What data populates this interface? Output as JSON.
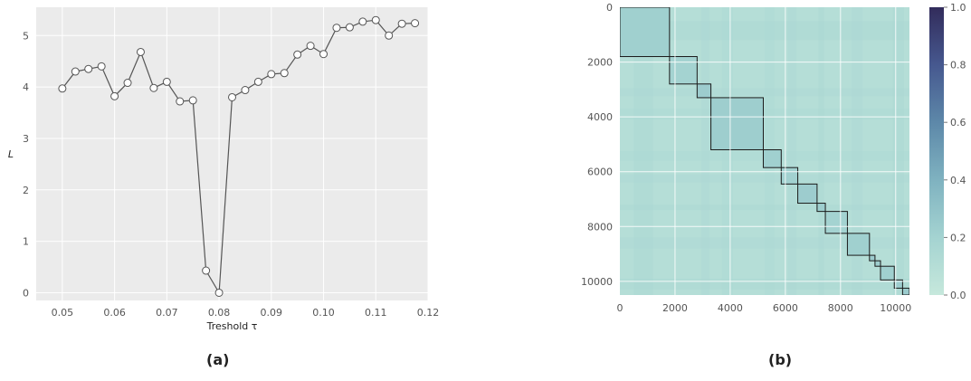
{
  "chart_data": [
    {
      "type": "line",
      "panel": "a",
      "xlabel": "Treshold τ",
      "ylabel": "L",
      "xlim": [
        0.045,
        0.12
      ],
      "ylim": [
        -0.15,
        5.55
      ],
      "xticks": [
        "0.05",
        "0.06",
        "0.07",
        "0.08",
        "0.09",
        "0.10",
        "0.11",
        "0.12"
      ],
      "yticks": [
        "0",
        "1",
        "2",
        "3",
        "4",
        "5"
      ],
      "grid": true,
      "series": [
        {
          "x": [
            0.05,
            0.0525,
            0.055,
            0.0575,
            0.06,
            0.0625,
            0.065,
            0.0675,
            0.07,
            0.0725,
            0.075,
            0.0775,
            0.08,
            0.0825,
            0.085,
            0.0875,
            0.09,
            0.0925,
            0.095,
            0.0975,
            0.1,
            0.1025,
            0.105,
            0.1075,
            0.11,
            0.1125,
            0.115,
            0.1175
          ],
          "values": [
            3.97,
            4.3,
            4.35,
            4.4,
            3.82,
            4.08,
            4.68,
            3.98,
            4.1,
            3.72,
            3.74,
            0.43,
            0.0,
            3.8,
            3.94,
            4.1,
            4.25,
            4.27,
            4.63,
            4.8,
            4.64,
            5.15,
            5.16,
            5.27,
            5.3,
            5.0,
            5.23,
            5.24
          ]
        }
      ],
      "colors": {
        "line": "#555555",
        "marker_fill": "#ffffff",
        "background": "#ebebeb",
        "grid": "#ffffff"
      }
    },
    {
      "type": "heatmap",
      "panel": "b",
      "xlim": [
        0,
        10500
      ],
      "ylim": [
        10500,
        0
      ],
      "xticks": [
        "0",
        "2000",
        "4000",
        "6000",
        "8000",
        "10000"
      ],
      "yticks": [
        "0",
        "2000",
        "4000",
        "6000",
        "8000",
        "10000"
      ],
      "colorbar_ticks": [
        "0.0",
        "0.2",
        "0.4",
        "0.6",
        "0.8",
        "1.0"
      ],
      "colorbar_range": [
        0,
        1
      ],
      "colormap": [
        "#c6e8dc",
        "#a4d3d1",
        "#7fb2c0",
        "#5d88a9",
        "#46588f",
        "#322c5b"
      ],
      "block_boundaries": [
        0,
        1800,
        2800,
        3300,
        5200,
        5850,
        6450,
        7150,
        7450,
        8250,
        9050,
        9250,
        9450,
        9950,
        10250,
        10500
      ],
      "block_values": [
        0.22,
        0.2,
        0.24,
        0.23,
        0.22,
        0.21,
        0.24,
        0.23,
        0.2,
        0.22,
        0.24,
        0.23,
        0.22,
        0.24,
        0.25
      ],
      "background_value": 0.1,
      "grid": true
    }
  ],
  "captions": {
    "a": "(a)",
    "b": "(b)"
  }
}
